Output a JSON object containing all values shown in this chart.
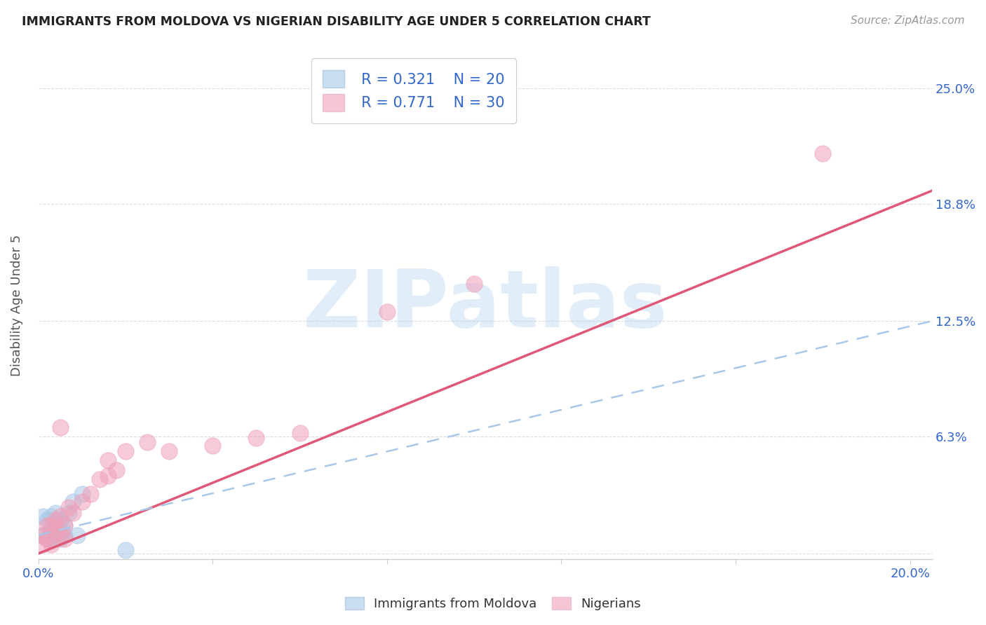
{
  "title": "IMMIGRANTS FROM MOLDOVA VS NIGERIAN DISABILITY AGE UNDER 5 CORRELATION CHART",
  "source": "Source: ZipAtlas.com",
  "ylabel": "Disability Age Under 5",
  "xlim": [
    0.0,
    0.205
  ],
  "ylim": [
    -0.003,
    0.27
  ],
  "xtick_positions": [
    0.0,
    0.04,
    0.08,
    0.12,
    0.16,
    0.2
  ],
  "xtick_labels": [
    "0.0%",
    "",
    "",
    "",
    "",
    "20.0%"
  ],
  "ytick_positions": [
    0.0,
    0.063,
    0.125,
    0.188,
    0.25
  ],
  "ytick_labels_right": [
    "",
    "6.3%",
    "12.5%",
    "18.8%",
    "25.0%"
  ],
  "legend_r1": "R = 0.321",
  "legend_n1": "N = 20",
  "legend_r2": "R = 0.771",
  "legend_n2": "N = 30",
  "blue_scatter_color": "#a8c8e8",
  "pink_scatter_color": "#f0a0b8",
  "blue_line_color": "#a8c8e8",
  "pink_line_color": "#e05878",
  "text_color_blue": "#3366cc",
  "watermark": "ZIPatlas",
  "watermark_color_r": 180,
  "watermark_color_g": 210,
  "watermark_color_b": 240,
  "grid_color": "#dddddd",
  "spine_color": "#cccccc",
  "moldova_x": [
    0.001,
    0.001,
    0.002,
    0.002,
    0.003,
    0.003,
    0.003,
    0.004,
    0.004,
    0.004,
    0.005,
    0.005,
    0.005,
    0.006,
    0.006,
    0.007,
    0.008,
    0.009,
    0.01,
    0.02
  ],
  "moldova_y": [
    0.01,
    0.02,
    0.008,
    0.018,
    0.008,
    0.012,
    0.02,
    0.01,
    0.015,
    0.022,
    0.008,
    0.012,
    0.018,
    0.01,
    0.015,
    0.022,
    0.028,
    0.01,
    0.032,
    0.002
  ],
  "nigerian_x": [
    0.001,
    0.001,
    0.002,
    0.002,
    0.003,
    0.003,
    0.004,
    0.004,
    0.005,
    0.005,
    0.006,
    0.006,
    0.007,
    0.008,
    0.01,
    0.012,
    0.014,
    0.016,
    0.016,
    0.018,
    0.02,
    0.025,
    0.03,
    0.04,
    0.05,
    0.06,
    0.08,
    0.1,
    0.18,
    0.005
  ],
  "nigerian_y": [
    0.005,
    0.01,
    0.008,
    0.015,
    0.005,
    0.015,
    0.012,
    0.018,
    0.01,
    0.02,
    0.008,
    0.015,
    0.025,
    0.022,
    0.028,
    0.032,
    0.04,
    0.042,
    0.05,
    0.045,
    0.055,
    0.06,
    0.055,
    0.058,
    0.062,
    0.065,
    0.13,
    0.145,
    0.215,
    0.068
  ],
  "pink_line_x0": 0.0,
  "pink_line_y0": 0.0,
  "pink_line_x1": 0.205,
  "pink_line_y1": 0.195,
  "blue_line_x0": 0.0,
  "blue_line_y0": 0.01,
  "blue_line_x1": 0.205,
  "blue_line_y1": 0.125
}
